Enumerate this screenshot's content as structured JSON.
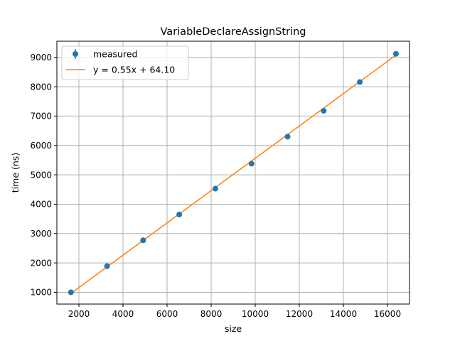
{
  "chart_data": {
    "type": "scatter",
    "title": "VariableDeclareAssignString",
    "xlabel": "size",
    "ylabel": "time (ns)",
    "xlim": [
      1000,
      17000
    ],
    "ylim": [
      600,
      9550
    ],
    "xticks": [
      2000,
      4000,
      6000,
      8000,
      10000,
      12000,
      14000,
      16000
    ],
    "yticks": [
      1000,
      2000,
      3000,
      4000,
      5000,
      6000,
      7000,
      8000,
      9000
    ],
    "grid": true,
    "legend_position": "top-left",
    "series": [
      {
        "name": "measured",
        "kind": "points-with-errorbars",
        "color": "#1f77b4",
        "x": [
          1638,
          3276,
          4915,
          6553,
          8192,
          9830,
          11468,
          13107,
          14745,
          16384
        ],
        "y": [
          1000,
          1890,
          2770,
          3650,
          4530,
          5380,
          6300,
          7180,
          8160,
          9120
        ]
      },
      {
        "name": "y = 0.55x + 64.10",
        "kind": "fit-line",
        "color": "#ff7f0e",
        "slope": 0.55,
        "intercept": 64.1,
        "x_range": [
          1638,
          16384
        ]
      }
    ]
  }
}
